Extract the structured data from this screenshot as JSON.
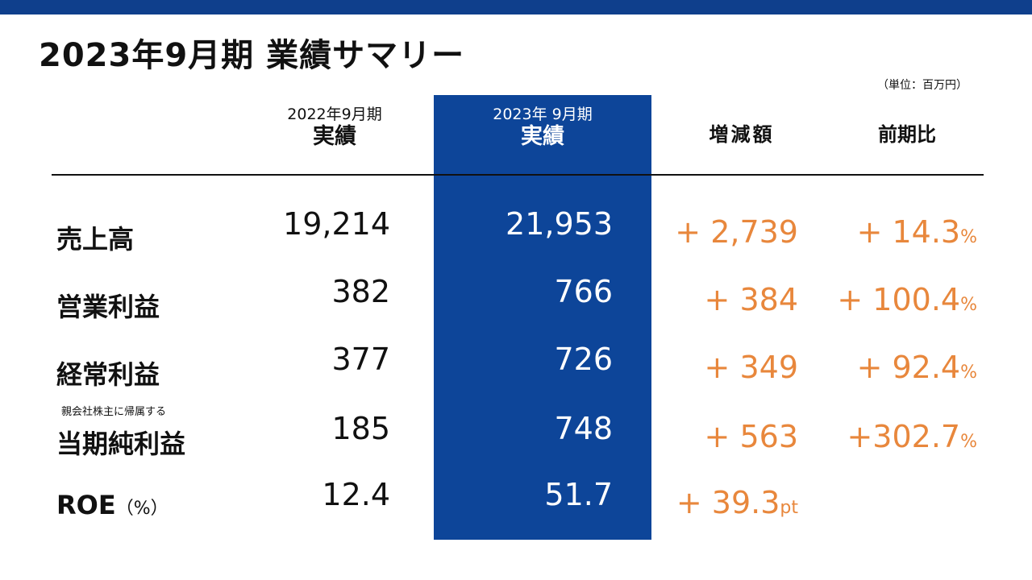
{
  "header": {
    "title": "2023年9月期  業績サマリー",
    "unit": "（単位：百万円）"
  },
  "columns": {
    "prev_period": "2022年9月期",
    "prev_label": "実績",
    "cur_period": "2023年 9月期",
    "cur_label": "実績",
    "diff": "増減額",
    "ratio": "前期比"
  },
  "rows": [
    {
      "label": "売上高",
      "prev": "19,214",
      "cur": "21,953",
      "diff": "+ 2,739",
      "ratio": "+ 14.3",
      "ratio_suffix": "%"
    },
    {
      "label": "営業利益",
      "prev": "382",
      "cur": "766",
      "diff": "+ 384",
      "ratio": "+ 100.4",
      "ratio_suffix": "%"
    },
    {
      "label": "経常利益",
      "prev": "377",
      "cur": "726",
      "diff": "+ 349",
      "ratio": "+ 92.4",
      "ratio_suffix": "%"
    },
    {
      "label_small": "親会社株主に帰属する",
      "label": "当期純利益",
      "prev": "185",
      "cur": "748",
      "diff": "+ 563",
      "ratio": "+302.7",
      "ratio_suffix": "%"
    },
    {
      "label": "ROE",
      "label_suffix": "（%）",
      "prev": "12.4",
      "cur": "51.7",
      "diff": "+ 39.3",
      "diff_suffix": "pt"
    }
  ],
  "colors": {
    "brand": "#0d4599",
    "topbar": "#0f3f8c",
    "accent": "#e8873c"
  }
}
